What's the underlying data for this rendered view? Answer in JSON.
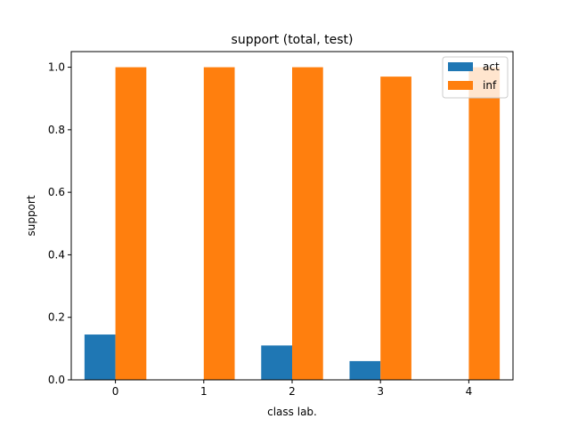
{
  "chart_data": {
    "type": "bar",
    "title": "support (total, test)",
    "xlabel": "class lab.",
    "ylabel": "support",
    "categories": [
      "0",
      "1",
      "2",
      "3",
      "4"
    ],
    "series": [
      {
        "name": "act",
        "color": "#1f77b4",
        "values": [
          0.145,
          0.0,
          0.11,
          0.06,
          0.0
        ]
      },
      {
        "name": "inf",
        "color": "#ff7f0e",
        "values": [
          1.0,
          1.0,
          1.0,
          0.97,
          1.0
        ]
      }
    ],
    "ylim": [
      0,
      1.05
    ],
    "yticks": [
      "0.0",
      "0.2",
      "0.4",
      "0.6",
      "0.8",
      "1.0"
    ],
    "grid": false,
    "legend_position": "top-right"
  }
}
